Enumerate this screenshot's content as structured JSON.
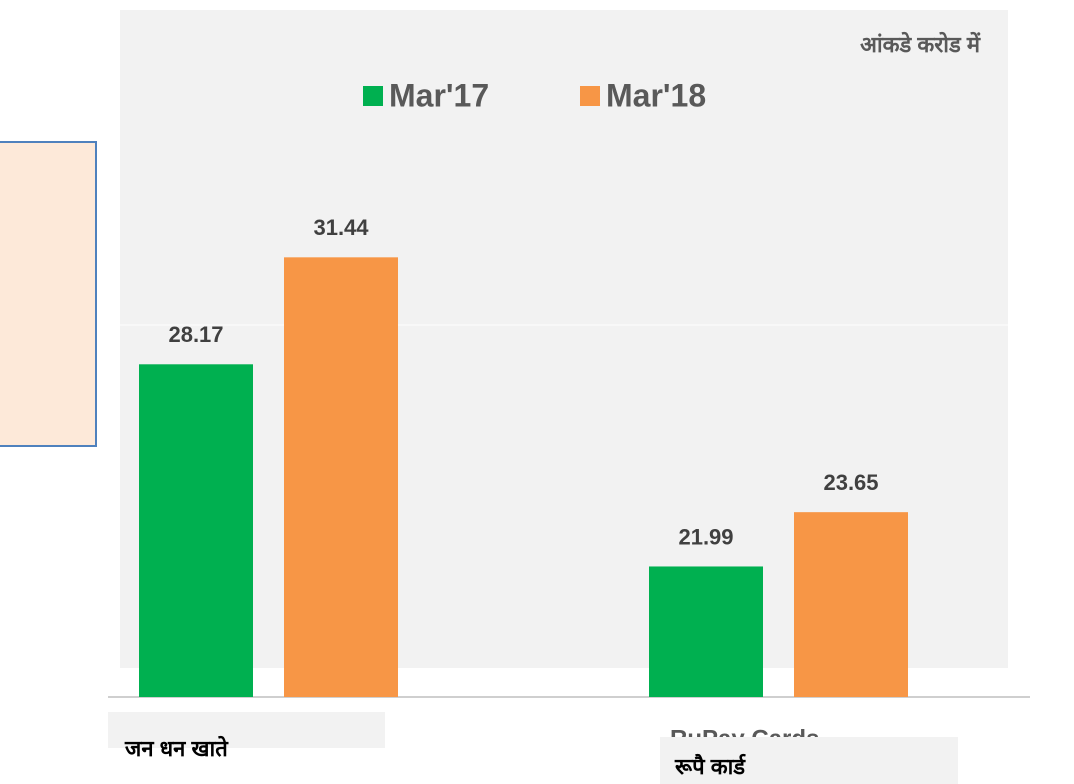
{
  "chart_data": {
    "type": "bar",
    "note": "आंकडे करोड में",
    "categories": [
      "जन धन खाते",
      "रूपै कार्ड"
    ],
    "overlay_text": "RuPay Cards",
    "series": [
      {
        "name": "Mar'17",
        "color": "#00b050",
        "values": [
          28.17,
          21.99
        ]
      },
      {
        "name": "Mar'18",
        "color": "#f79646",
        "values": [
          31.44,
          23.65
        ]
      }
    ],
    "ylim": [
      18,
      39
    ]
  }
}
